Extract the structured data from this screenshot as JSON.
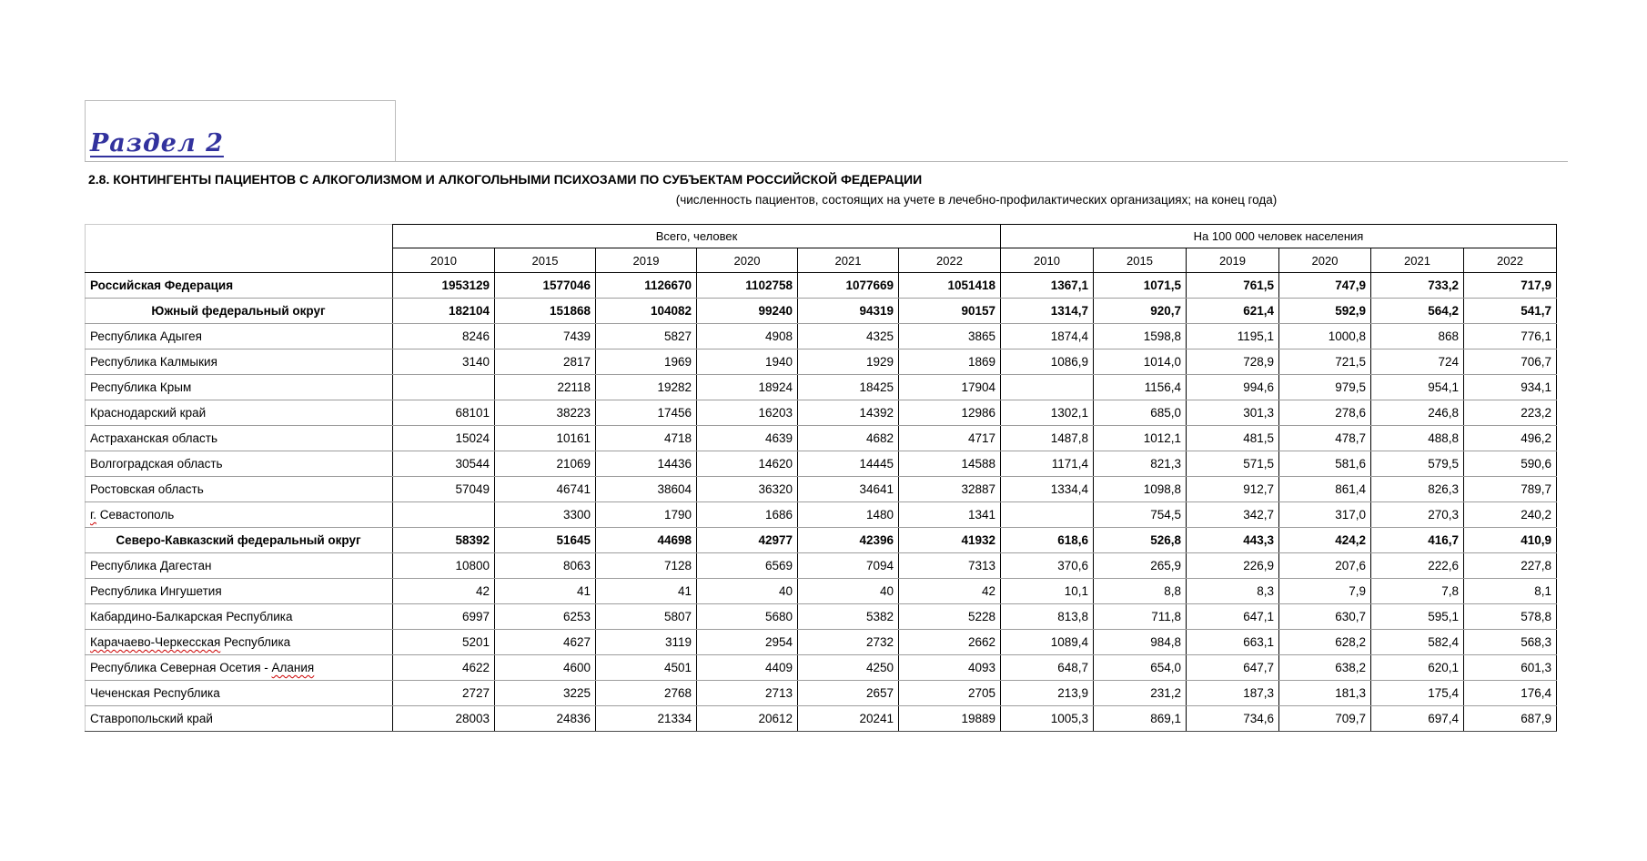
{
  "section": {
    "label": "Раздел 2"
  },
  "title": "2.8. КОНТИНГЕНТЫ ПАЦИЕНТОВ С АЛКОГОЛИЗМОМ  И АЛКОГОЛЬНЫМИ ПСИХОЗАМИ ПО СУБЪЕКТАМ РОССИЙСКОЙ ФЕДЕРАЦИИ",
  "subtitle": "(численность пациентов, состоящих на учете в лечебно-профилактических организациях; на конец года)",
  "colors": {
    "section_link": "#32329e",
    "spellcheck_underline": "#cc0000",
    "grid_line": "#9c9c9c",
    "table_border": "#000000"
  },
  "table": {
    "group_headers": {
      "total": "Всего, человек",
      "rate": "На 100 000 человек населения"
    },
    "years": [
      "2010",
      "2015",
      "2019",
      "2020",
      "2021",
      "2022"
    ],
    "rows": [
      {
        "name": "Российская Федерация",
        "emphasis": "bold",
        "align": "left",
        "wavy": null,
        "total": [
          "1953129",
          "1577046",
          "1126670",
          "1102758",
          "1077669",
          "1051418"
        ],
        "rate": [
          "1367,1",
          "1071,5",
          "761,5",
          "747,9",
          "733,2",
          "717,9"
        ]
      },
      {
        "name": "Южный федеральный округ",
        "emphasis": "bold",
        "align": "center",
        "wavy": null,
        "total": [
          "182104",
          "151868",
          "104082",
          "99240",
          "94319",
          "90157"
        ],
        "rate": [
          "1314,7",
          "920,7",
          "621,4",
          "592,9",
          "564,2",
          "541,7"
        ]
      },
      {
        "name": "Республика Адыгея",
        "emphasis": "none",
        "align": "left",
        "wavy": null,
        "total": [
          "8246",
          "7439",
          "5827",
          "4908",
          "4325",
          "3865"
        ],
        "rate": [
          "1874,4",
          "1598,8",
          "1195,1",
          "1000,8",
          "868",
          "776,1"
        ]
      },
      {
        "name": "Республика Калмыкия",
        "emphasis": "none",
        "align": "left",
        "wavy": null,
        "total": [
          "3140",
          "2817",
          "1969",
          "1940",
          "1929",
          "1869"
        ],
        "rate": [
          "1086,9",
          "1014,0",
          "728,9",
          "721,5",
          "724",
          "706,7"
        ]
      },
      {
        "name": "Республика Крым",
        "emphasis": "none",
        "align": "left",
        "wavy": null,
        "total": [
          "",
          "22118",
          "19282",
          "18924",
          "18425",
          "17904"
        ],
        "rate": [
          "",
          "1156,4",
          "994,6",
          "979,5",
          "954,1",
          "934,1"
        ]
      },
      {
        "name": "Краснодарский край",
        "emphasis": "none",
        "align": "left",
        "wavy": null,
        "total": [
          "68101",
          "38223",
          "17456",
          "16203",
          "14392",
          "12986"
        ],
        "rate": [
          "1302,1",
          "685,0",
          "301,3",
          "278,6",
          "246,8",
          "223,2"
        ]
      },
      {
        "name": "Астраханская область",
        "emphasis": "none",
        "align": "left",
        "wavy": null,
        "total": [
          "15024",
          "10161",
          "4718",
          "4639",
          "4682",
          "4717"
        ],
        "rate": [
          "1487,8",
          "1012,1",
          "481,5",
          "478,7",
          "488,8",
          "496,2"
        ]
      },
      {
        "name": "Волгоградская область",
        "emphasis": "none",
        "align": "left",
        "wavy": null,
        "total": [
          "30544",
          "21069",
          "14436",
          "14620",
          "14445",
          "14588"
        ],
        "rate": [
          "1171,4",
          "821,3",
          "571,5",
          "581,6",
          "579,5",
          "590,6"
        ]
      },
      {
        "name": "Ростовская область",
        "emphasis": "none",
        "align": "left",
        "wavy": null,
        "total": [
          "57049",
          "46741",
          "38604",
          "36320",
          "34641",
          "32887"
        ],
        "rate": [
          "1334,4",
          "1098,8",
          "912,7",
          "861,4",
          "826,3",
          "789,7"
        ]
      },
      {
        "name": "г. Севастополь",
        "emphasis": "none",
        "align": "left",
        "wavy": "г.",
        "total": [
          "",
          "3300",
          "1790",
          "1686",
          "1480",
          "1341"
        ],
        "rate": [
          "",
          "754,5",
          "342,7",
          "317,0",
          "270,3",
          "240,2"
        ]
      },
      {
        "name": "Северо-Кавказский федеральный округ",
        "emphasis": "bold",
        "align": "center",
        "wavy": null,
        "total": [
          "58392",
          "51645",
          "44698",
          "42977",
          "42396",
          "41932"
        ],
        "rate": [
          "618,6",
          "526,8",
          "443,3",
          "424,2",
          "416,7",
          "410,9"
        ]
      },
      {
        "name": "Республика Дагестан",
        "emphasis": "none",
        "align": "left",
        "wavy": null,
        "total": [
          "10800",
          "8063",
          "7128",
          "6569",
          "7094",
          "7313"
        ],
        "rate": [
          "370,6",
          "265,9",
          "226,9",
          "207,6",
          "222,6",
          "227,8"
        ]
      },
      {
        "name": "Республика Ингушетия",
        "emphasis": "none",
        "align": "left",
        "wavy": null,
        "total": [
          "42",
          "41",
          "41",
          "40",
          "40",
          "42"
        ],
        "rate": [
          "10,1",
          "8,8",
          "8,3",
          "7,9",
          "7,8",
          "8,1"
        ]
      },
      {
        "name": "Кабардино-Балкарская Республика",
        "emphasis": "none",
        "align": "left",
        "wavy": null,
        "total": [
          "6997",
          "6253",
          "5807",
          "5680",
          "5382",
          "5228"
        ],
        "rate": [
          "813,8",
          "711,8",
          "647,1",
          "630,7",
          "595,1",
          "578,8"
        ]
      },
      {
        "name": "Карачаево-Черкесская Республика",
        "emphasis": "none",
        "align": "left",
        "wavy": "Карачаево-Черкесская",
        "total": [
          "5201",
          "4627",
          "3119",
          "2954",
          "2732",
          "2662"
        ],
        "rate": [
          "1089,4",
          "984,8",
          "663,1",
          "628,2",
          "582,4",
          "568,3"
        ]
      },
      {
        "name": "Республика Северная Осетия - Алания",
        "emphasis": "none",
        "align": "left",
        "wavy": "Алания",
        "total": [
          "4622",
          "4600",
          "4501",
          "4409",
          "4250",
          "4093"
        ],
        "rate": [
          "648,7",
          "654,0",
          "647,7",
          "638,2",
          "620,1",
          "601,3"
        ]
      },
      {
        "name": "Чеченская Республика",
        "emphasis": "none",
        "align": "left",
        "wavy": null,
        "total": [
          "2727",
          "3225",
          "2768",
          "2713",
          "2657",
          "2705"
        ],
        "rate": [
          "213,9",
          "231,2",
          "187,3",
          "181,3",
          "175,4",
          "176,4"
        ]
      },
      {
        "name": "Ставропольский край",
        "emphasis": "none",
        "align": "left",
        "wavy": null,
        "total": [
          "28003",
          "24836",
          "21334",
          "20612",
          "20241",
          "19889"
        ],
        "rate": [
          "1005,3",
          "869,1",
          "734,6",
          "709,7",
          "697,4",
          "687,9"
        ]
      }
    ]
  }
}
